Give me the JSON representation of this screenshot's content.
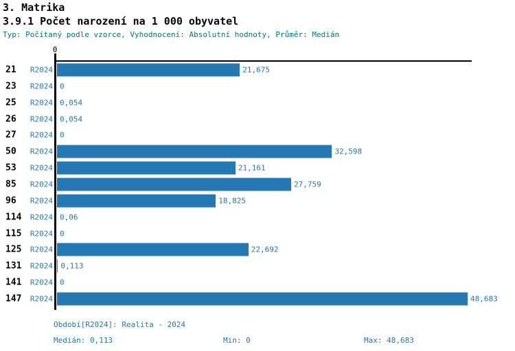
{
  "header": {
    "title": "3. Matrika",
    "subtitle": "3.9.1 Počet narození na 1 000 obyvatel",
    "meta_line": "Typ: Počítaný podle vzorce, Vyhodnocení: Absolutní hodnoty, Průměr: Medián"
  },
  "colors": {
    "bar": "#2478b4",
    "blue_text": "#2478b4",
    "meta_text": "#007878",
    "axis": "#000000"
  },
  "chart_data": {
    "type": "bar",
    "orientation": "horizontal",
    "title": "3.9.1 Počet narození na 1 000 obyvatel",
    "categories": [
      "21",
      "23",
      "25",
      "26",
      "27",
      "50",
      "53",
      "85",
      "96",
      "114",
      "115",
      "125",
      "131",
      "141",
      "147"
    ],
    "series": [
      {
        "name": "R2024",
        "values": [
          21.675,
          0,
          0.054,
          0.054,
          0,
          32.598,
          21.161,
          27.759,
          18.825,
          0.06,
          0,
          22.692,
          0.113,
          0,
          48.683
        ],
        "value_labels": [
          "21,675",
          "0",
          "0,054",
          "0,054",
          "0",
          "32,598",
          "21,161",
          "27,759",
          "18,825",
          "0,06",
          "0",
          "22,692",
          "0,113",
          "0",
          "48,683"
        ]
      }
    ],
    "x_axis": {
      "min": 0,
      "max_visible": 49.3,
      "tick_labels": [
        "0"
      ]
    },
    "grid": false,
    "legend": false,
    "max_value": 48.683
  },
  "footer": {
    "period_line": "Období[R2024]: Realita - 2024",
    "stats": {
      "median": "Medián: 0,113",
      "min": "Min: 0",
      "max": "Max: 48,683"
    }
  }
}
